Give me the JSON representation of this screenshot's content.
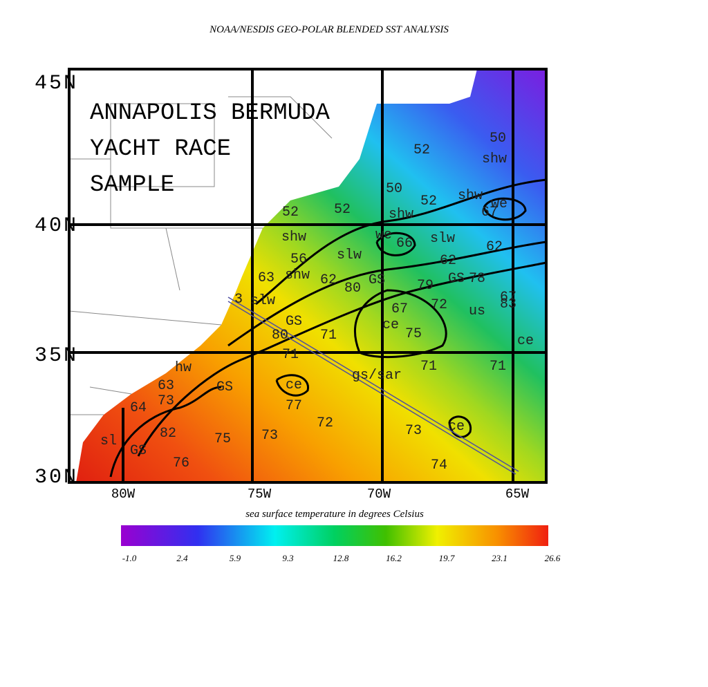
{
  "title": "NOAA/NESDIS GEO-POLAR BLENDED SST ANALYSIS",
  "overlay": [
    "ANNAPOLIS BERMUDA",
    "YACHT RACE",
    "SAMPLE"
  ],
  "latitude_labels": [
    "45N",
    "40N",
    "35N",
    "30N"
  ],
  "longitude_labels": [
    "80W",
    "75W",
    "70W",
    "65W"
  ],
  "contour_labels": [
    "52",
    "50",
    "shw",
    "50",
    "52",
    "shw",
    "52",
    "52",
    "shw",
    "we",
    "67",
    "shw",
    "we",
    "slw",
    "66",
    "62",
    "56",
    "slw",
    "62",
    "63",
    "shw",
    "62",
    "GS",
    "80",
    "79",
    "GS",
    "78",
    "67",
    "3",
    "slw",
    "67",
    "72",
    "us",
    "83",
    "GS",
    "80",
    "71",
    "ce",
    "75",
    "ce",
    "71",
    "71",
    "71",
    "hw",
    "63",
    "GS",
    "ce",
    "gs/sar",
    "64",
    "73",
    "77",
    "72",
    "73",
    "ce",
    "82",
    "75",
    "73",
    "sl",
    "GS",
    "76",
    "74"
  ],
  "colorbar": {
    "title": "sea surface temperature in degrees Celsius",
    "labels": [
      "-1.0",
      "2.4",
      "5.9",
      "9.3",
      "12.8",
      "16.2",
      "19.7",
      "23.1",
      "26.6"
    ]
  }
}
